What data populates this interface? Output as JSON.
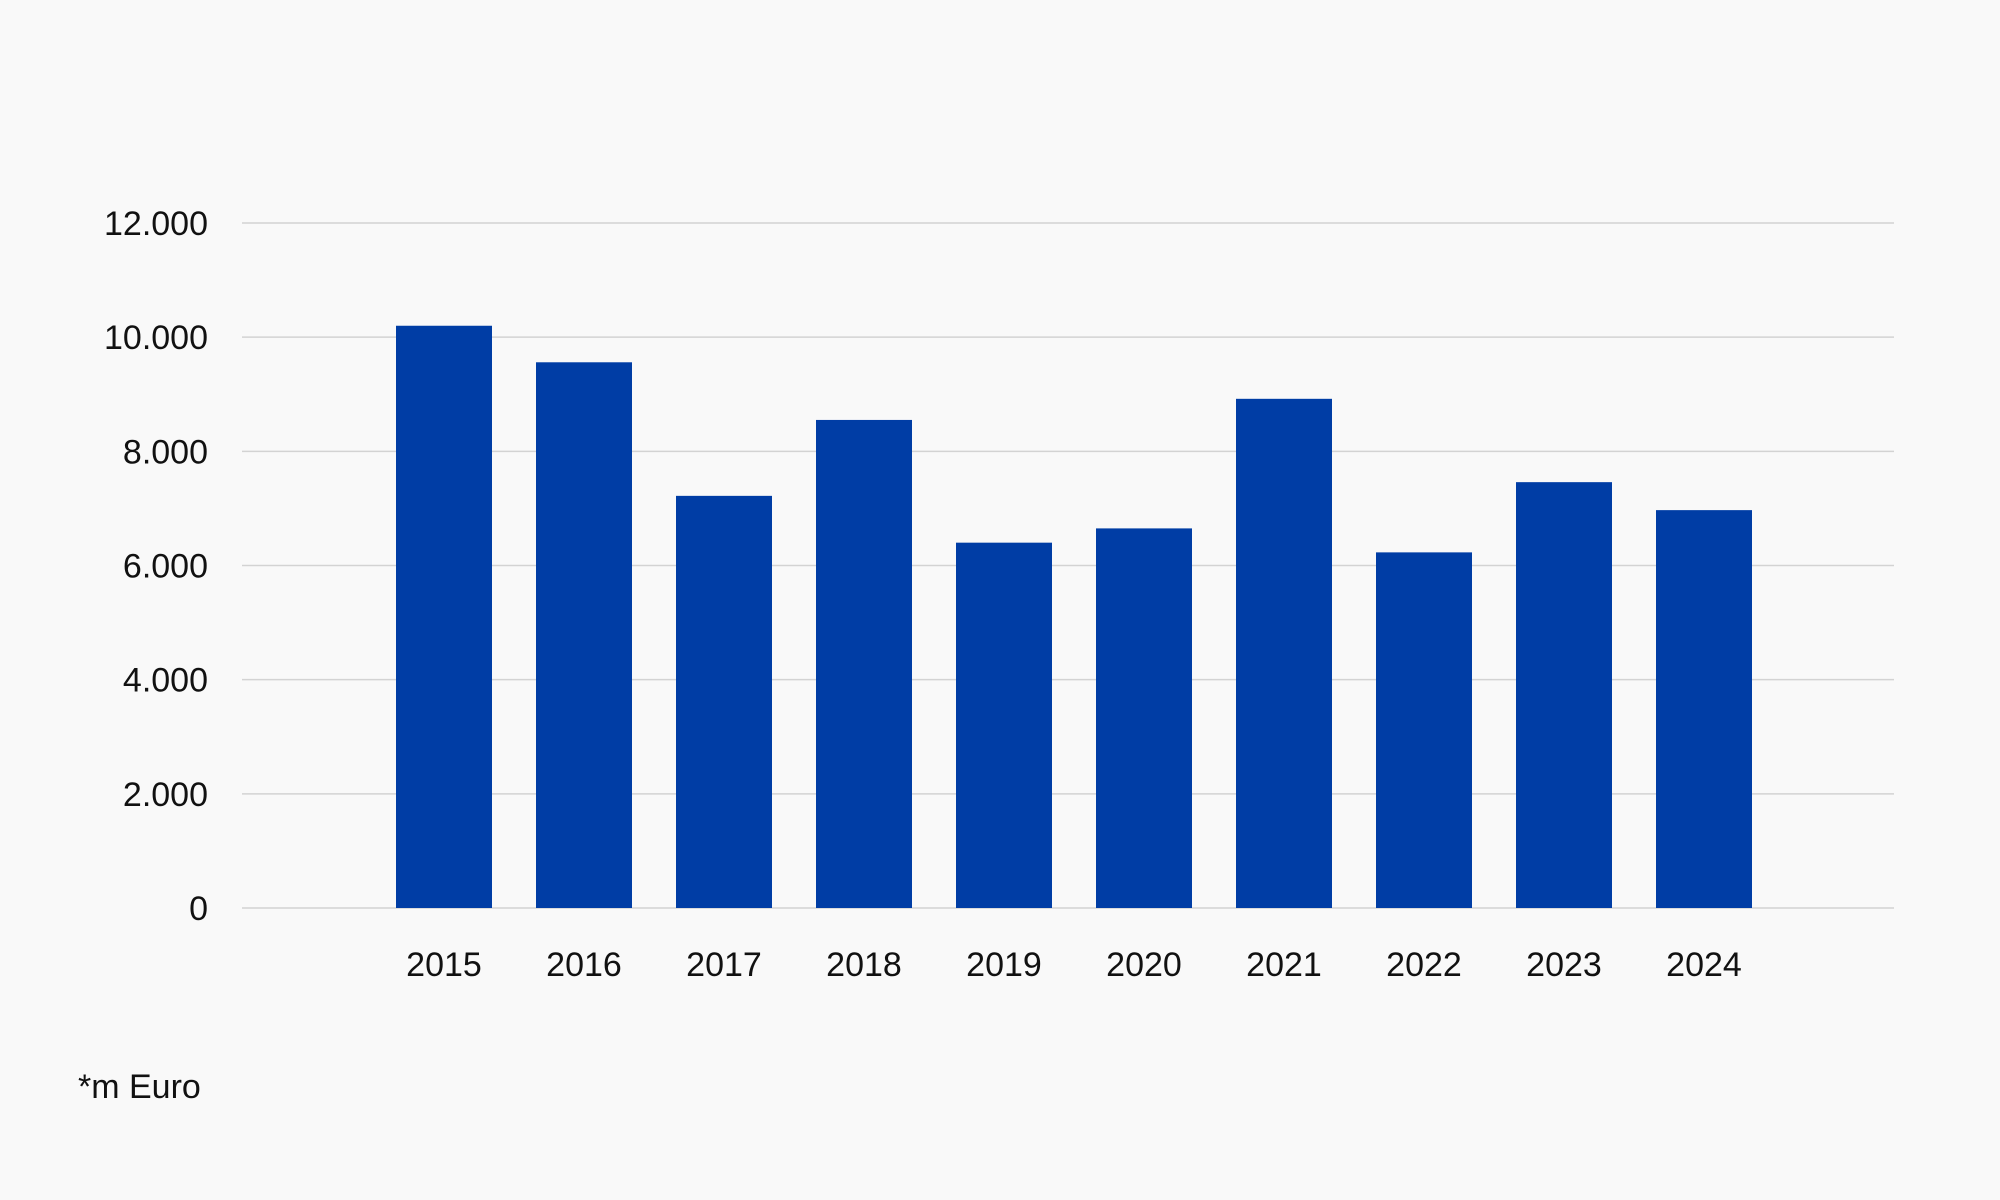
{
  "chart_data": {
    "type": "bar",
    "title": "",
    "xlabel": "",
    "ylabel": "",
    "categories": [
      "2015",
      "2016",
      "2017",
      "2018",
      "2019",
      "2020",
      "2021",
      "2022",
      "2023",
      "2024"
    ],
    "values": [
      10200,
      9560,
      7220,
      8550,
      6400,
      6650,
      8920,
      6230,
      7460,
      6970
    ],
    "ylim": [
      0,
      12000
    ],
    "yticks": [
      0,
      2000,
      4000,
      6000,
      8000,
      10000,
      12000
    ],
    "ytick_labels": [
      "0",
      "2.000",
      "4.000",
      "6.000",
      "8.000",
      "10.000",
      "12.000"
    ],
    "grid": true,
    "legend": "none",
    "bar_color": "#003da5",
    "grid_color": "#d3d3d3"
  },
  "footnote": "*m Euro"
}
